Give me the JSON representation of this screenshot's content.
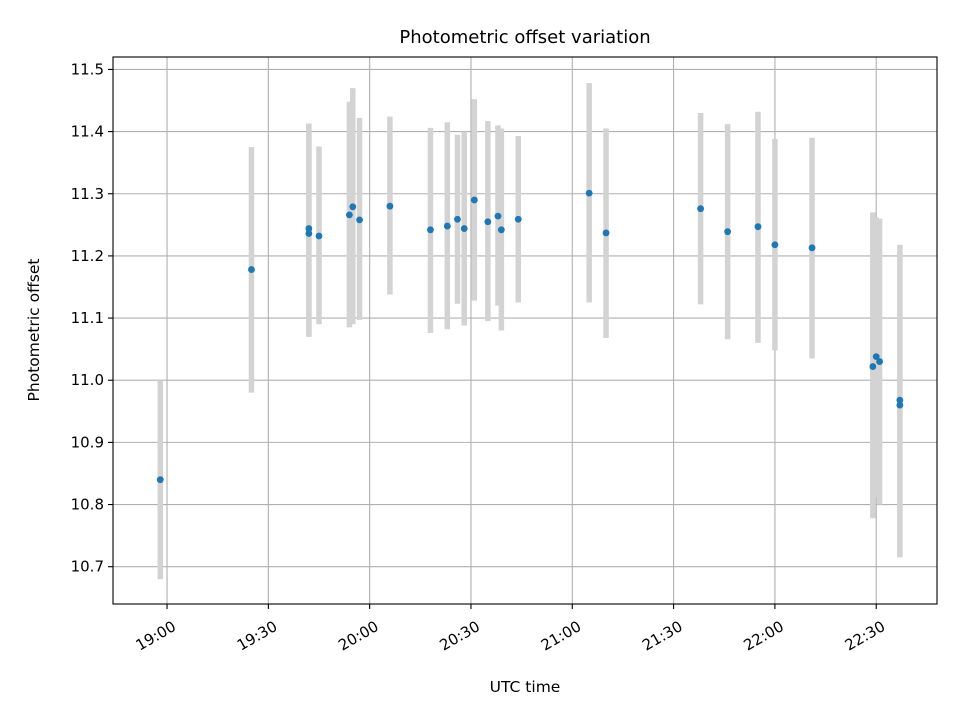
{
  "chart_data": {
    "type": "scatter",
    "title": "Photometric offset variation",
    "xlabel": "UTC time",
    "ylabel": "Photometric offset",
    "x_ticks": [
      "19:00",
      "19:30",
      "20:00",
      "20:30",
      "21:00",
      "21:30",
      "22:00",
      "22:30"
    ],
    "y_ticks": [
      "10.7",
      "10.8",
      "10.9",
      "11.0",
      "11.1",
      "11.2",
      "11.3",
      "11.4",
      "11.5"
    ],
    "xlim": [
      "18:44",
      "22:48"
    ],
    "ylim": [
      10.64,
      11.52
    ],
    "grid": true,
    "colors": {
      "point": "#1f77b4",
      "errorbar": "#d3d3d3",
      "grid": "#b0b0b0"
    },
    "points": [
      {
        "x": "18:58",
        "y": 10.84,
        "low": 10.68,
        "high": 11.0
      },
      {
        "x": "19:25",
        "y": 11.178,
        "low": 10.98,
        "high": 11.375
      },
      {
        "x": "19:42",
        "y": 11.244,
        "low": 11.07,
        "high": 11.413
      },
      {
        "x": "19:42",
        "y": 11.236,
        "low": 11.07,
        "high": 11.41
      },
      {
        "x": "19:45",
        "y": 11.232,
        "low": 11.09,
        "high": 11.376
      },
      {
        "x": "19:54",
        "y": 11.266,
        "low": 11.085,
        "high": 11.448
      },
      {
        "x": "19:55",
        "y": 11.279,
        "low": 11.09,
        "high": 11.47
      },
      {
        "x": "19:57",
        "y": 11.258,
        "low": 11.097,
        "high": 11.422
      },
      {
        "x": "20:06",
        "y": 11.28,
        "low": 11.138,
        "high": 11.424
      },
      {
        "x": "20:18",
        "y": 11.242,
        "low": 11.076,
        "high": 11.406
      },
      {
        "x": "20:23",
        "y": 11.248,
        "low": 11.082,
        "high": 11.415
      },
      {
        "x": "20:26",
        "y": 11.259,
        "low": 11.123,
        "high": 11.395
      },
      {
        "x": "20:28",
        "y": 11.244,
        "low": 11.088,
        "high": 11.4
      },
      {
        "x": "20:31",
        "y": 11.29,
        "low": 11.128,
        "high": 11.452
      },
      {
        "x": "20:35",
        "y": 11.255,
        "low": 11.095,
        "high": 11.417
      },
      {
        "x": "20:38",
        "y": 11.264,
        "low": 11.12,
        "high": 11.41
      },
      {
        "x": "20:39",
        "y": 11.242,
        "low": 11.08,
        "high": 11.405
      },
      {
        "x": "20:44",
        "y": 11.259,
        "low": 11.125,
        "high": 11.393
      },
      {
        "x": "21:05",
        "y": 11.301,
        "low": 11.125,
        "high": 11.478
      },
      {
        "x": "21:10",
        "y": 11.237,
        "low": 11.068,
        "high": 11.405
      },
      {
        "x": "21:38",
        "y": 11.276,
        "low": 11.122,
        "high": 11.43
      },
      {
        "x": "21:46",
        "y": 11.239,
        "low": 11.066,
        "high": 11.412
      },
      {
        "x": "21:55",
        "y": 11.247,
        "low": 11.06,
        "high": 11.432
      },
      {
        "x": "22:00",
        "y": 11.218,
        "low": 11.048,
        "high": 11.388
      },
      {
        "x": "22:11",
        "y": 11.213,
        "low": 11.035,
        "high": 11.39
      },
      {
        "x": "22:29",
        "y": 11.022,
        "low": 10.778,
        "high": 11.27
      },
      {
        "x": "22:30",
        "y": 11.038,
        "low": 10.812,
        "high": 11.262
      },
      {
        "x": "22:31",
        "y": 11.03,
        "low": 10.8,
        "high": 11.26
      },
      {
        "x": "22:37",
        "y": 10.968,
        "low": 10.718,
        "high": 11.218
      },
      {
        "x": "22:37",
        "y": 10.96,
        "low": 10.715,
        "high": 11.205
      }
    ]
  }
}
